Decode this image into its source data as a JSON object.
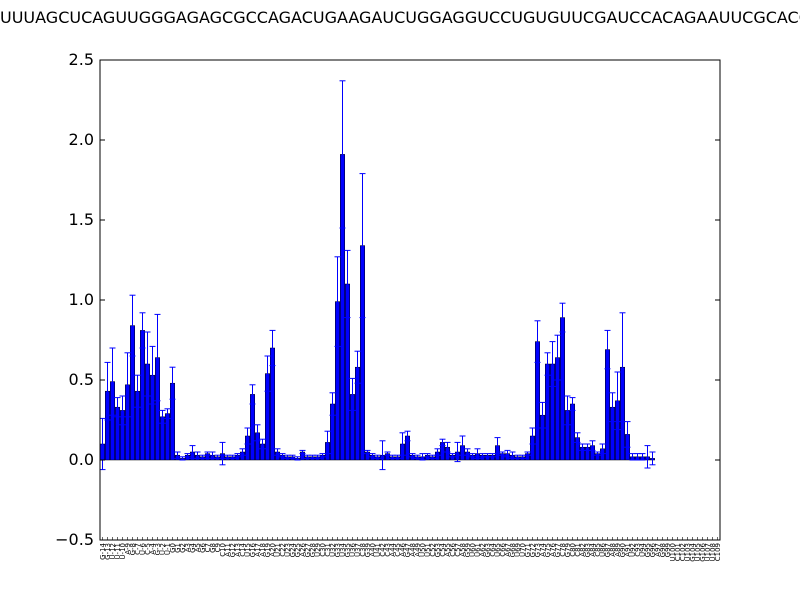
{
  "chart_data": {
    "type": "bar",
    "title": "UUUAGCUCAGUUGGGAGAGCGCCAGACUGAAGAUCUGGAGGUCCUGUGUUCGAUCCACAGAAUUCGCACCA",
    "xlabel": "",
    "ylabel": "",
    "ylim": [
      -0.5,
      2.5
    ],
    "yticks": [
      "−0.5",
      "0.0",
      "0.5",
      "1.0",
      "1.5",
      "2.0",
      "2.5"
    ],
    "grid": false,
    "bar_color": "#0000ff",
    "error_color": "#0000ff",
    "categories": [
      "G-14",
      "G-13",
      "U-12",
      "U-11",
      "U-10",
      "A-9",
      "G-8",
      "C-7",
      "U-6",
      "C-5",
      "A-4",
      "G-3",
      "U-2",
      "U-1",
      "G0",
      "G1",
      "G2",
      "A3",
      "G4",
      "A5",
      "G6",
      "C7",
      "G8",
      "C9",
      "C10",
      "A11",
      "G12",
      "A13",
      "C14",
      "U15",
      "G16",
      "A17",
      "A18",
      "G19",
      "A20",
      "U21",
      "C22",
      "U23",
      "G24",
      "G25",
      "A26",
      "G27",
      "G28",
      "U29",
      "C30",
      "C31",
      "U32",
      "G33",
      "U34",
      "G35",
      "U36",
      "U37",
      "C38",
      "G39",
      "A40",
      "U41",
      "C42",
      "C43",
      "A44",
      "C45",
      "A46",
      "G47",
      "A48",
      "A49",
      "U50",
      "U51",
      "C52",
      "G53",
      "C54",
      "A55",
      "C56",
      "C57",
      "A58",
      "G59",
      "U60",
      "U61",
      "A62",
      "G63",
      "C64",
      "U65",
      "C66",
      "A67",
      "G68",
      "U69",
      "U70",
      "G71",
      "G72",
      "G73",
      "A74",
      "G75",
      "A76",
      "G77",
      "C78",
      "G79",
      "C80",
      "C81",
      "A82",
      "G83",
      "A84",
      "C85",
      "U86",
      "G87",
      "A88",
      "A89",
      "G90",
      "A91",
      "U92",
      "C93",
      "U94",
      "G95",
      "G96",
      "A97",
      "G98",
      "G99",
      "U100",
      "C101",
      "C102",
      "U103",
      "G104",
      "U105",
      "G106",
      "U107",
      "U108",
      "C109"
    ],
    "values": [
      0.1,
      0.43,
      0.49,
      0.33,
      0.31,
      0.47,
      0.84,
      0.43,
      0.81,
      0.6,
      0.53,
      0.64,
      0.27,
      0.29,
      0.48,
      0.03,
      0.01,
      0.03,
      0.05,
      0.03,
      0.02,
      0.04,
      0.03,
      0.02,
      0.04,
      0.02,
      0.02,
      0.03,
      0.05,
      0.15,
      0.41,
      0.17,
      0.1,
      0.54,
      0.7,
      0.05,
      0.03,
      0.02,
      0.02,
      0.01,
      0.05,
      0.02,
      0.02,
      0.02,
      0.03,
      0.11,
      0.35,
      0.99,
      1.91,
      1.1,
      0.41,
      0.58,
      1.34,
      0.05,
      0.03,
      0.02,
      0.03,
      0.04,
      0.02,
      0.02,
      0.1,
      0.15,
      0.03,
      0.02,
      0.02,
      0.03,
      0.02,
      0.05,
      0.11,
      0.08,
      0.03,
      0.05,
      0.09,
      0.05,
      0.03,
      0.04,
      0.03,
      0.03,
      0.03,
      0.09,
      0.04,
      0.04,
      0.03,
      0.02,
      0.02,
      0.04,
      0.15,
      0.74,
      0.28,
      0.6,
      0.6,
      0.64,
      0.89,
      0.31,
      0.35,
      0.14,
      0.08,
      0.08,
      0.09,
      0.04,
      0.07,
      0.69,
      0.33,
      0.37,
      0.58,
      0.16,
      0.02,
      0.02,
      0.02,
      0.02,
      0.01,
      0.0,
      0.0,
      0.0,
      0.0,
      0.0,
      0.0,
      0.0,
      0.0,
      0.0,
      0.0,
      0.0,
      0.0,
      0.0
    ],
    "errors": [
      0.16,
      0.18,
      0.21,
      0.06,
      0.09,
      0.2,
      0.19,
      0.1,
      0.11,
      0.2,
      0.18,
      0.27,
      0.04,
      0.03,
      0.1,
      0.02,
      0.01,
      0.01,
      0.04,
      0.02,
      0.01,
      0.01,
      0.02,
      0.01,
      0.07,
      0.01,
      0.01,
      0.01,
      0.02,
      0.05,
      0.06,
      0.05,
      0.03,
      0.11,
      0.11,
      0.02,
      0.01,
      0.01,
      0.01,
      0.01,
      0.01,
      0.01,
      0.01,
      0.01,
      0.01,
      0.07,
      0.07,
      0.28,
      0.46,
      0.21,
      0.1,
      0.1,
      0.45,
      0.01,
      0.01,
      0.01,
      0.09,
      0.01,
      0.01,
      0.01,
      0.07,
      0.03,
      0.01,
      0.01,
      0.02,
      0.01,
      0.01,
      0.02,
      0.02,
      0.03,
      0.01,
      0.06,
      0.06,
      0.02,
      0.01,
      0.03,
      0.01,
      0.01,
      0.01,
      0.05,
      0.01,
      0.02,
      0.02,
      0.01,
      0.01,
      0.01,
      0.05,
      0.13,
      0.08,
      0.07,
      0.14,
      0.14,
      0.09,
      0.09,
      0.04,
      0.03,
      0.02,
      0.02,
      0.03,
      0.01,
      0.03,
      0.12,
      0.09,
      0.18,
      0.34,
      0.08,
      0.02,
      0.02,
      0.02,
      0.07,
      0.04,
      0.0,
      0.0,
      0.0,
      0.0,
      0.0,
      0.0,
      0.0,
      0.0,
      0.0,
      0.0,
      0.0,
      0.0,
      0.0
    ]
  }
}
